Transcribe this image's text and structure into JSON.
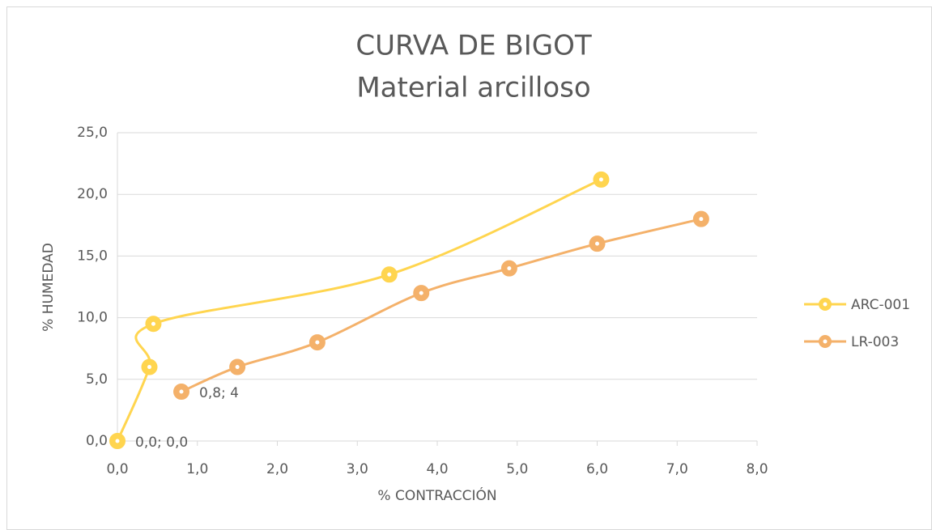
{
  "chart_data": {
    "type": "scatter",
    "title": "CURVA DE BIGOT",
    "subtitle": "Material arcilloso",
    "x_label": "% CONTRACCIÓN",
    "y_label": "% HUMEDAD",
    "xlim": [
      0,
      8
    ],
    "ylim": [
      0,
      25
    ],
    "xticks": [
      {
        "value": 0,
        "label": "0,0"
      },
      {
        "value": 1,
        "label": "1,0"
      },
      {
        "value": 2,
        "label": "2,0"
      },
      {
        "value": 3,
        "label": "3,0"
      },
      {
        "value": 4,
        "label": "4,0"
      },
      {
        "value": 5,
        "label": "5,0"
      },
      {
        "value": 6,
        "label": "6,0"
      },
      {
        "value": 7,
        "label": "7,0"
      },
      {
        "value": 8,
        "label": "8,0"
      }
    ],
    "yticks": [
      {
        "value": 0,
        "label": "0,0"
      },
      {
        "value": 5,
        "label": "5,0"
      },
      {
        "value": 10,
        "label": "10,0"
      },
      {
        "value": 15,
        "label": "15,0"
      },
      {
        "value": 20,
        "label": "20,0"
      },
      {
        "value": 25,
        "label": "25,0"
      }
    ],
    "grid": true,
    "legend": "right",
    "smooth": true,
    "series": [
      {
        "name": "ARC-001",
        "color": "#ffd54f",
        "x": [
          0,
          0.4,
          0.45,
          3.4,
          6.05
        ],
        "values": [
          0,
          6,
          9.5,
          13.5,
          21.2
        ],
        "value_labels": [
          "0,0; 0,0",
          null,
          null,
          null,
          null
        ]
      },
      {
        "name": "LR-003",
        "color": "#f4b16a",
        "x": [
          0.8,
          1.5,
          2.5,
          3.8,
          4.9,
          6.0,
          7.3
        ],
        "values": [
          4,
          6,
          8,
          12,
          14,
          16,
          18
        ],
        "value_labels": [
          "0,8; 4",
          null,
          null,
          null,
          null,
          null,
          null
        ]
      }
    ]
  }
}
